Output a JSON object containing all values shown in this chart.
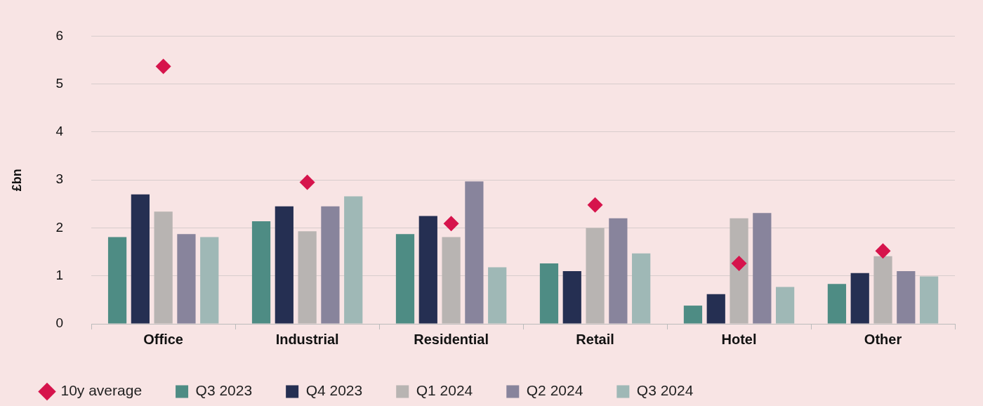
{
  "chart_data": {
    "type": "bar",
    "ylabel": "£bn",
    "categories": [
      "Office",
      "Industrial",
      "Residential",
      "Retail",
      "Hotel",
      "Other"
    ],
    "series": [
      {
        "name": "Q3 2023",
        "color": "#4e8c84",
        "values": [
          1.81,
          2.14,
          1.87,
          1.26,
          0.38,
          0.83
        ]
      },
      {
        "name": "Q4 2023",
        "color": "#252f52",
        "values": [
          2.7,
          2.45,
          2.25,
          1.1,
          0.62,
          1.06
        ]
      },
      {
        "name": "Q1 2024",
        "color": "#b8b4b2",
        "values": [
          2.34,
          1.93,
          1.81,
          2.0,
          2.2,
          1.41
        ]
      },
      {
        "name": "Q2 2024",
        "color": "#88849c",
        "values": [
          1.87,
          2.45,
          2.97,
          2.2,
          2.31,
          1.1
        ]
      },
      {
        "name": "Q3 2024",
        "color": "#9fb8b6",
        "values": [
          1.81,
          2.66,
          1.18,
          1.47,
          0.77,
          0.99
        ]
      },
      {
        "name": "10y average",
        "type": "scatter",
        "color": "#d6144c",
        "x": [
          "Office",
          "Industrial",
          "Residential",
          "Retail",
          "Hotel",
          "Other"
        ],
        "values": [
          5.37,
          2.95,
          2.09,
          2.48,
          1.26,
          1.52
        ]
      }
    ],
    "ylim": [
      0,
      6
    ],
    "yticks": [
      0,
      1,
      2,
      3,
      4,
      5,
      6
    ],
    "grid": "y",
    "legend": "bottom",
    "marker": "diamond"
  }
}
